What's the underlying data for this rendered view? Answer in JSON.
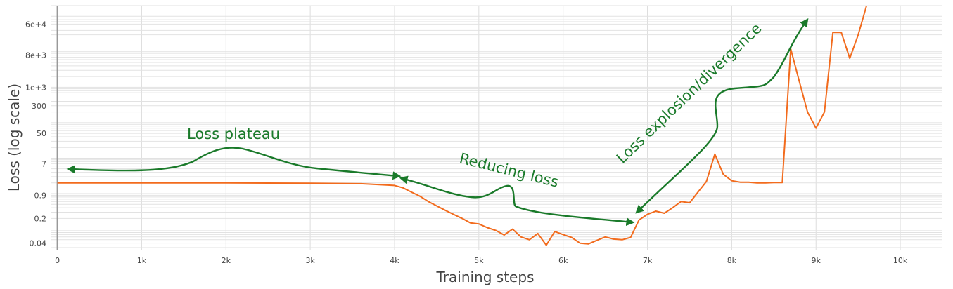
{
  "chart_data": {
    "type": "line",
    "xlabel": "Training steps",
    "ylabel": "Loss (log scale)",
    "x_scale": "linear",
    "y_scale": "log",
    "xlim": [
      -80,
      10500
    ],
    "ylim": [
      0.025,
      200000
    ],
    "grid": true,
    "x_ticks": [
      0,
      1000,
      2000,
      3000,
      4000,
      5000,
      6000,
      7000,
      8000,
      9000,
      10000
    ],
    "x_tick_labels": [
      "0",
      "1k",
      "2k",
      "3k",
      "4k",
      "5k",
      "6k",
      "7k",
      "8k",
      "9k",
      "10k"
    ],
    "y_ticks": [
      0.04,
      0.2,
      0.9,
      7,
      50,
      300,
      1000,
      8000,
      60000
    ],
    "y_tick_labels": [
      "0.04",
      "0.2",
      "0.9",
      "7",
      "50",
      "300",
      "1e+3",
      "8e+3",
      "6e+4"
    ],
    "series": [
      {
        "color": "#f26b1d",
        "x": [
          0,
          1000,
          2000,
          3000,
          3600,
          4000,
          4100,
          4200,
          4300,
          4400,
          4500,
          4600,
          4700,
          4800,
          4900,
          5000,
          5100,
          5200,
          5300,
          5400,
          5500,
          5600,
          5700,
          5800,
          5900,
          6000,
          6100,
          6200,
          6300,
          6400,
          6500,
          6600,
          6700,
          6800,
          6900,
          7000,
          7100,
          7200,
          7300,
          7400,
          7500,
          7600,
          7700,
          7800,
          7900,
          8000,
          8100,
          8200,
          8300,
          8400,
          8500,
          8600,
          8700,
          8800,
          8900,
          9000,
          9100,
          9200,
          9300,
          9400,
          9500,
          9600
        ],
        "y": [
          2.0,
          2.0,
          2.0,
          1.95,
          1.9,
          1.7,
          1.45,
          1.1,
          0.85,
          0.6,
          0.45,
          0.34,
          0.26,
          0.2,
          0.15,
          0.14,
          0.11,
          0.092,
          0.068,
          0.1,
          0.06,
          0.05,
          0.075,
          0.035,
          0.085,
          0.07,
          0.058,
          0.04,
          0.038,
          0.048,
          0.06,
          0.052,
          0.05,
          0.058,
          0.18,
          0.26,
          0.32,
          0.28,
          0.4,
          0.6,
          0.55,
          1.1,
          2.2,
          13,
          3.5,
          2.3,
          2.1,
          2.1,
          2.0,
          2.0,
          2.05,
          2.05,
          12000,
          1500,
          200,
          70,
          200,
          35000,
          35000,
          6500,
          30000,
          300000
        ]
      }
    ],
    "annotations": [
      {
        "text": "Loss plateau"
      },
      {
        "text": "Reducing loss"
      },
      {
        "text": "Loss explosion/divergence"
      }
    ],
    "annotation_color": "#1a7a2a"
  }
}
